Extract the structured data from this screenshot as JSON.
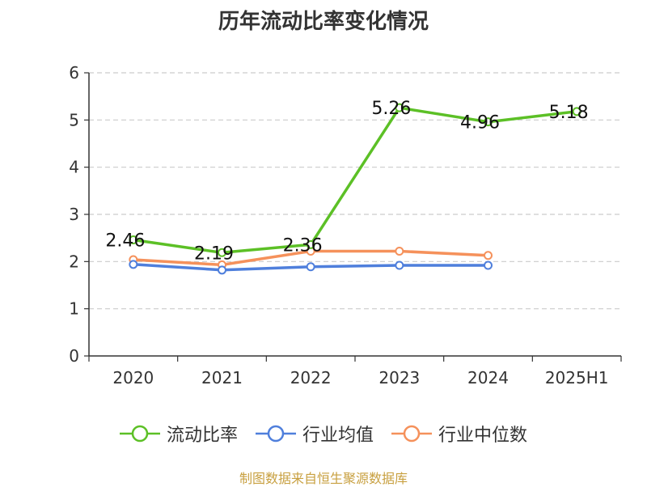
{
  "chart_data": {
    "type": "line",
    "title": "历年流动比率变化情况",
    "categories": [
      "2020",
      "2021",
      "2022",
      "2023",
      "2024",
      "2025H1"
    ],
    "ylim": [
      0,
      6
    ],
    "yticks": [
      0,
      1,
      2,
      3,
      4,
      5,
      6
    ],
    "grid": true,
    "legend_position": "bottom",
    "series": [
      {
        "name": "流动比率",
        "color": "#5cc026",
        "values": [
          2.46,
          2.19,
          2.36,
          5.26,
          4.96,
          5.18
        ],
        "labels": [
          "2.46",
          "2.19",
          "2.36",
          "5.26",
          "4.96",
          "5.18"
        ]
      },
      {
        "name": "行业均值",
        "color": "#4f7fdc",
        "values": [
          1.94,
          1.82,
          1.89,
          1.92,
          1.92,
          null
        ]
      },
      {
        "name": "行业中位数",
        "color": "#f5915b",
        "values": [
          2.04,
          1.93,
          2.22,
          2.22,
          2.13,
          null
        ]
      }
    ],
    "source": "制图数据来自恒生聚源数据库"
  }
}
